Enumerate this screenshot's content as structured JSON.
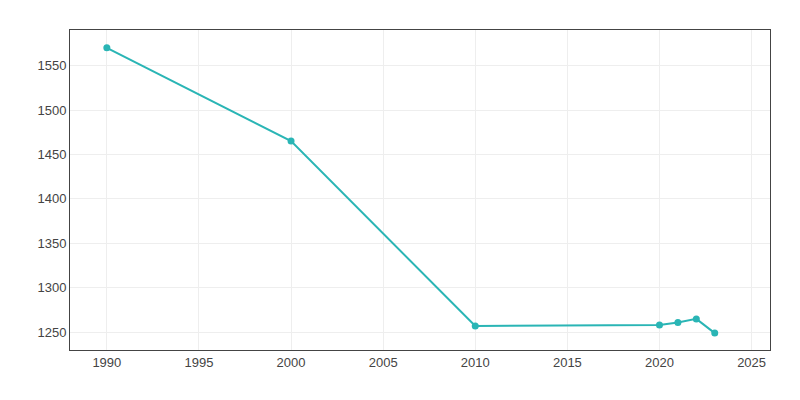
{
  "chart_data": {
    "type": "line",
    "x": [
      1990,
      2000,
      2010,
      2020,
      2021,
      2022,
      2023
    ],
    "values": [
      1570,
      1465,
      1257,
      1258,
      1261,
      1265,
      1249
    ],
    "color": "#2ab5b5",
    "marker": "circle",
    "line_style": "solid",
    "xlim": [
      1988,
      2026
    ],
    "ylim": [
      1230,
      1590
    ],
    "xticks": [
      1990,
      1995,
      2000,
      2005,
      2010,
      2015,
      2020,
      2025
    ],
    "yticks": [
      1250,
      1300,
      1350,
      1400,
      1450,
      1500,
      1550
    ],
    "grid": true
  }
}
